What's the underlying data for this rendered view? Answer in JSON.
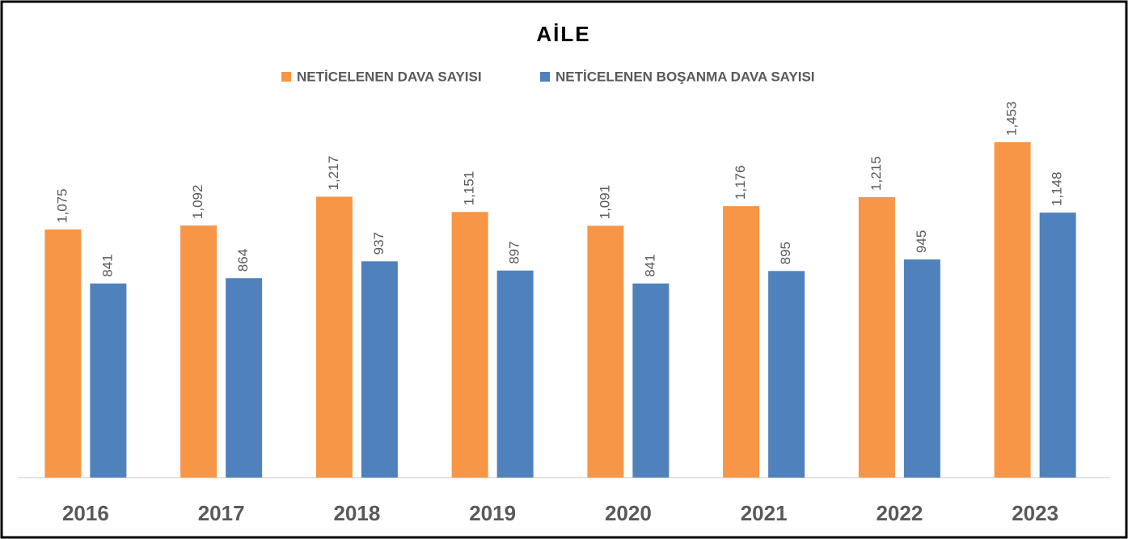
{
  "chart_data": {
    "type": "bar",
    "title": "AİLE",
    "categories": [
      "2016",
      "2017",
      "2018",
      "2019",
      "2020",
      "2021",
      "2022",
      "2023"
    ],
    "series": [
      {
        "name": "NETİCELENEN DAVA SAYISI",
        "color": "#f79646",
        "values": [
          1075,
          1092,
          1217,
          1151,
          1091,
          1176,
          1215,
          1453
        ],
        "value_labels": [
          "1,075",
          "1,092",
          "1,217",
          "1,151",
          "1,091",
          "1,176",
          "1,215",
          "1,453"
        ]
      },
      {
        "name": "NETİCELENEN BOŞANMA DAVA SAYISI",
        "color": "#4f81bd",
        "values": [
          841,
          864,
          937,
          897,
          841,
          895,
          945,
          1148
        ],
        "value_labels": [
          "841",
          "864",
          "937",
          "897",
          "841",
          "895",
          "945",
          "1,148"
        ]
      }
    ],
    "ylim": [
      0,
      1600
    ],
    "legend": "top"
  }
}
